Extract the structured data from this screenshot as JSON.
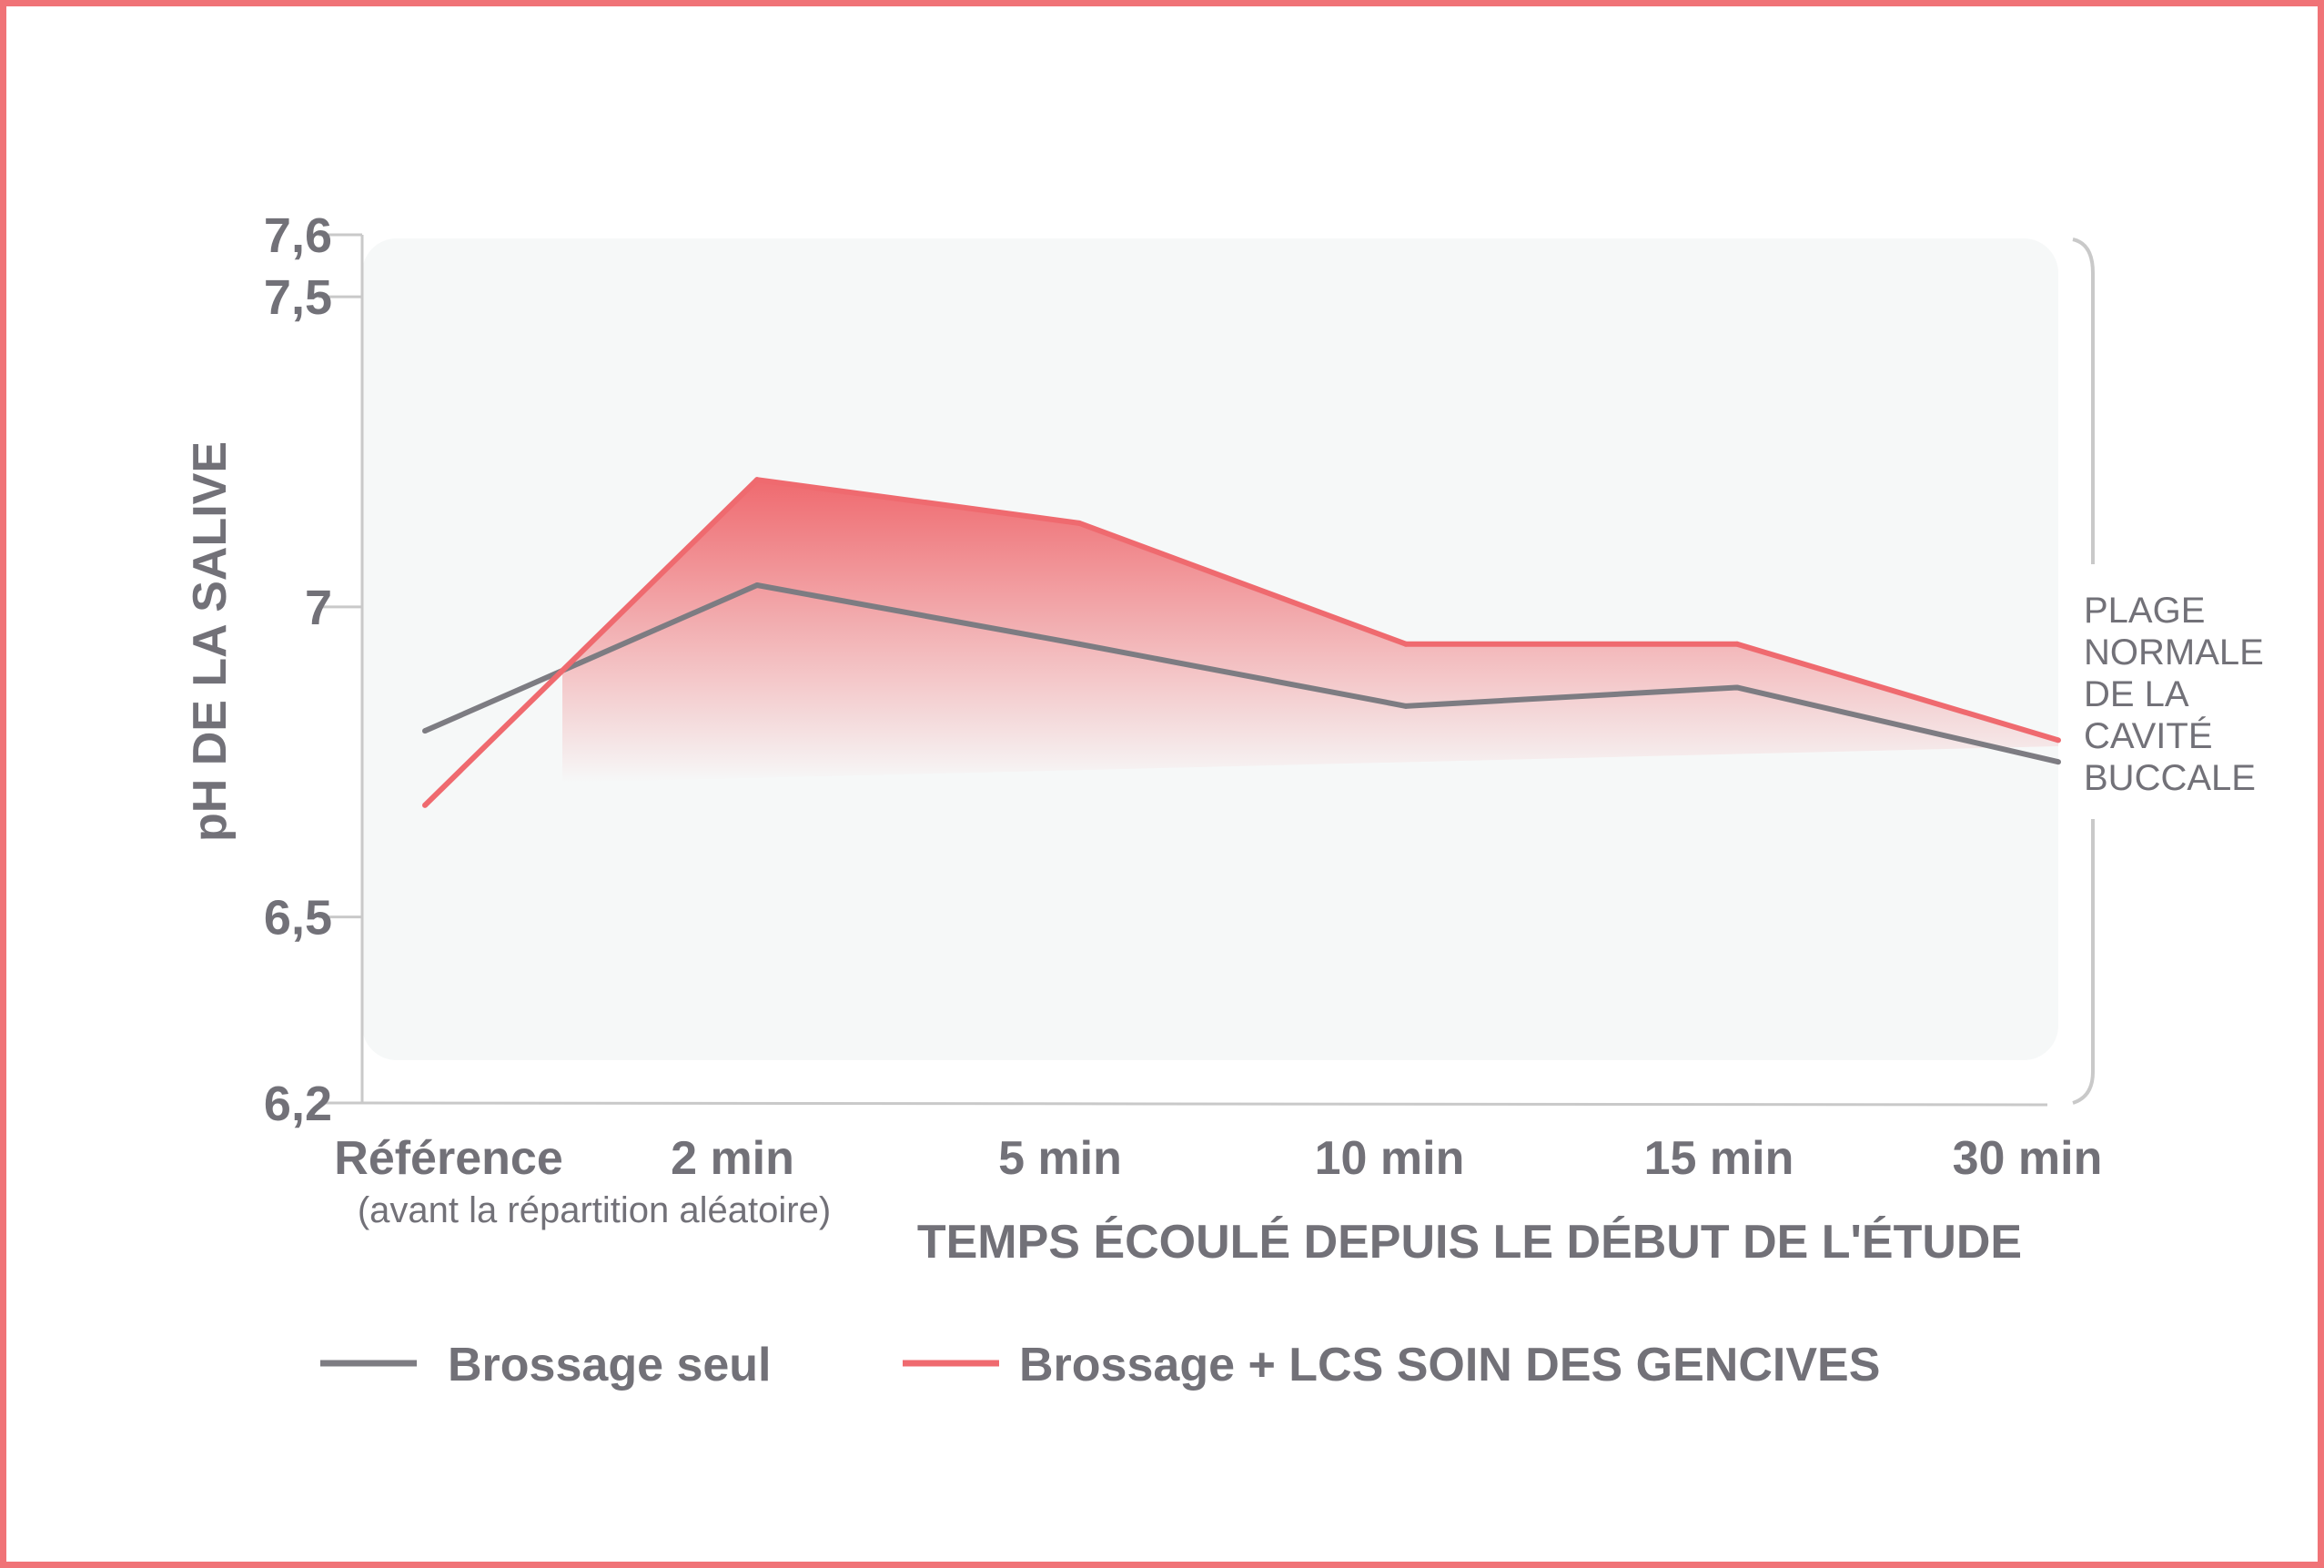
{
  "chart_data": {
    "type": "line",
    "ylabel": "pH DE LA SALIVE",
    "xlabel": "TEMPS ÉCOULÉ DEPUIS LE DÉBUT DE L'ÉTUDE",
    "categories": [
      {
        "label": "Référence",
        "sublabel": "(avant la répartition aléatoire)"
      },
      {
        "label": "2 min",
        "sublabel": ""
      },
      {
        "label": "5 min",
        "sublabel": ""
      },
      {
        "label": "10 min",
        "sublabel": ""
      },
      {
        "label": "15 min",
        "sublabel": ""
      },
      {
        "label": "30 min",
        "sublabel": ""
      }
    ],
    "ylim": [
      6.2,
      7.6
    ],
    "yticks": [
      {
        "value": 7.6,
        "label": "7,6"
      },
      {
        "value": 7.5,
        "label": "7,5"
      },
      {
        "value": 7.0,
        "label": "7"
      },
      {
        "value": 6.5,
        "label": "6,5"
      },
      {
        "value": 6.2,
        "label": "6,2"
      }
    ],
    "series": [
      {
        "name": "Brossage seul",
        "color": "#7d7c82",
        "values": [
          6.8,
          7.035,
          6.94,
          6.84,
          6.87,
          6.75
        ]
      },
      {
        "name": "Brossage + LCS SOIN DES GENCIVES",
        "color": "#ef6a6f",
        "values": [
          6.68,
          7.205,
          7.135,
          6.94,
          6.94,
          6.785
        ]
      }
    ],
    "normal_range": {
      "label_lines": [
        "PLAGE",
        "NORMALE",
        "DE LA",
        "CAVITÉ",
        "BUCCALE"
      ],
      "range": [
        6.2,
        7.6
      ]
    },
    "grid": false,
    "legend_position": "bottom"
  }
}
